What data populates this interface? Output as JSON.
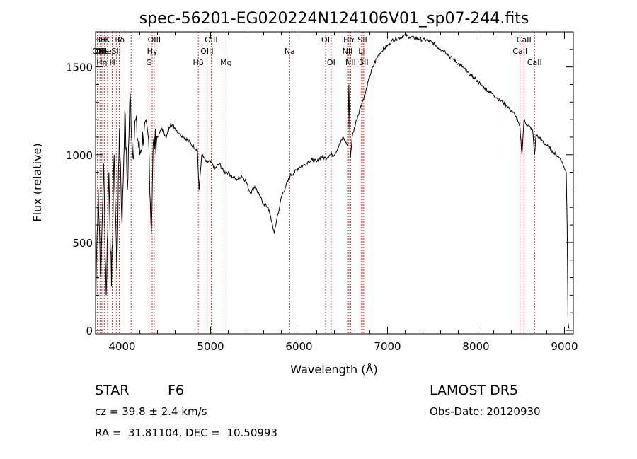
{
  "chart_data": {
    "type": "line",
    "title": "spec-56201-EG020224N124106V01_sp07-244.fits",
    "xlabel": "Wavelength (Å)",
    "ylabel": "Flux (relative)",
    "xlim": [
      3700,
      9100
    ],
    "ylim": [
      -20,
      1700
    ],
    "xticks": [
      4000,
      5000,
      6000,
      7000,
      8000,
      9000
    ],
    "yticks": [
      0,
      500,
      1000,
      1500
    ],
    "grid": false,
    "series": [
      {
        "x": [
          3700,
          3710,
          3730,
          3760,
          3790,
          3820,
          3850,
          3880,
          3910,
          3940,
          3970,
          4000,
          4030,
          4060,
          4090,
          4120,
          4150,
          4200,
          4250,
          4300,
          4330,
          4350,
          4400,
          4450,
          4500,
          4550,
          4600,
          4650,
          4700,
          4750,
          4800,
          4850,
          4870,
          4900,
          4950,
          5000,
          5050,
          5100,
          5150,
          5200,
          5250,
          5300,
          5350,
          5400,
          5450,
          5500,
          5550,
          5600,
          5650,
          5700,
          5720,
          5750,
          5780,
          5800,
          5850,
          5900,
          5950,
          6000,
          6050,
          6100,
          6150,
          6200,
          6250,
          6300,
          6350,
          6400,
          6450,
          6500,
          6550,
          6563,
          6580,
          6600,
          6650,
          6700,
          6750,
          6800,
          6850,
          6900,
          6950,
          7000,
          7050,
          7100,
          7150,
          7200,
          7250,
          7300,
          7350,
          7400,
          7450,
          7500,
          7550,
          7600,
          7650,
          7700,
          7750,
          7800,
          7850,
          7900,
          7950,
          8000,
          8050,
          8100,
          8150,
          8200,
          8250,
          8300,
          8350,
          8400,
          8450,
          8498,
          8520,
          8542,
          8560,
          8600,
          8640,
          8662,
          8680,
          8700,
          8750,
          8800,
          8850,
          8900,
          8950,
          8980,
          9000,
          9020,
          9030,
          9040,
          9050
        ],
        "y": [
          30,
          400,
          800,
          300,
          950,
          200,
          900,
          250,
          1000,
          350,
          1150,
          600,
          1250,
          800,
          1350,
          1000,
          1200,
          1000,
          1150,
          1080,
          550,
          1050,
          1100,
          1150,
          1100,
          1180,
          1150,
          1120,
          1100,
          1080,
          1050,
          1030,
          800,
          1000,
          960,
          960,
          920,
          950,
          900,
          900,
          870,
          860,
          880,
          850,
          780,
          820,
          770,
          720,
          700,
          600,
          550,
          640,
          700,
          760,
          820,
          880,
          900,
          930,
          940,
          960,
          970,
          960,
          990,
          980,
          1000,
          1000,
          1050,
          1100,
          1050,
          1400,
          980,
          1100,
          1200,
          1280,
          1350,
          1450,
          1520,
          1570,
          1600,
          1620,
          1650,
          1660,
          1670,
          1680,
          1670,
          1665,
          1660,
          1655,
          1650,
          1640,
          1620,
          1600,
          1590,
          1560,
          1540,
          1520,
          1500,
          1470,
          1450,
          1430,
          1400,
          1380,
          1360,
          1340,
          1320,
          1300,
          1280,
          1250,
          1220,
          1150,
          1000,
          1200,
          1180,
          1160,
          1140,
          1000,
          1120,
          1100,
          1080,
          1050,
          1030,
          1000,
          980,
          950,
          920,
          900,
          600,
          50,
          10
        ]
      }
    ],
    "line_markers": [
      {
        "x": 3722,
        "labels": [
          "OII"
        ],
        "row": 1
      },
      {
        "x": 3750,
        "labels": [
          "Hθ",
          "OII"
        ],
        "row": 0
      },
      {
        "x": 3771,
        "labels": [
          "Hη"
        ],
        "row": 2
      },
      {
        "x": 3798,
        "labels": [
          "Hε"
        ],
        "row": 1
      },
      {
        "x": 3835,
        "labels": [
          "K",
          "HeI"
        ],
        "row": 0
      },
      {
        "x": 3889,
        "labels": [
          "H"
        ],
        "row": 2
      },
      {
        "x": 3934,
        "labels": [
          "SII"
        ],
        "row": 1
      },
      {
        "x": 3969,
        "labels": [
          "Hδ"
        ],
        "row": 0
      },
      {
        "x": 4101,
        "labels": [],
        "row": 0
      },
      {
        "x": 4304,
        "labels": [
          "G"
        ],
        "row": 2
      },
      {
        "x": 4340,
        "labels": [
          "Hγ"
        ],
        "row": 1
      },
      {
        "x": 4363,
        "labels": [
          "OIII"
        ],
        "row": 0
      },
      {
        "x": 4861,
        "labels": [
          "Hβ"
        ],
        "row": 2
      },
      {
        "x": 4959,
        "labels": [
          "OIII"
        ],
        "row": 1
      },
      {
        "x": 5007,
        "labels": [
          "OIII"
        ],
        "row": 0
      },
      {
        "x": 5175,
        "labels": [
          "Mg"
        ],
        "row": 2
      },
      {
        "x": 5894,
        "labels": [
          "Na"
        ],
        "row": 1
      },
      {
        "x": 6300,
        "labels": [
          "OI"
        ],
        "row": 0
      },
      {
        "x": 6363,
        "labels": [
          "OI"
        ],
        "row": 2
      },
      {
        "x": 6548,
        "labels": [
          "NII"
        ],
        "row": 1
      },
      {
        "x": 6563,
        "labels": [
          "Hα"
        ],
        "row": 0
      },
      {
        "x": 6583,
        "labels": [
          "NII"
        ],
        "row": 2
      },
      {
        "x": 6707,
        "labels": [
          "Li"
        ],
        "row": 1
      },
      {
        "x": 6716,
        "labels": [
          "SII"
        ],
        "row": 0
      },
      {
        "x": 6731,
        "labels": [
          "SII"
        ],
        "row": 2
      },
      {
        "x": 8498,
        "labels": [
          "CaII"
        ],
        "row": 1
      },
      {
        "x": 8542,
        "labels": [
          "CaII"
        ],
        "row": 0
      },
      {
        "x": 8662,
        "labels": [
          "CaII"
        ],
        "row": 2
      }
    ]
  },
  "info": {
    "class": "STAR",
    "subclass": "F6",
    "survey": "LAMOST DR5",
    "cz": "cz = 39.8 ± 2.4 km/s",
    "obs_date": "Obs-Date: 20120930",
    "radec": "RA =  31.81104, DEC =  10.50993"
  }
}
